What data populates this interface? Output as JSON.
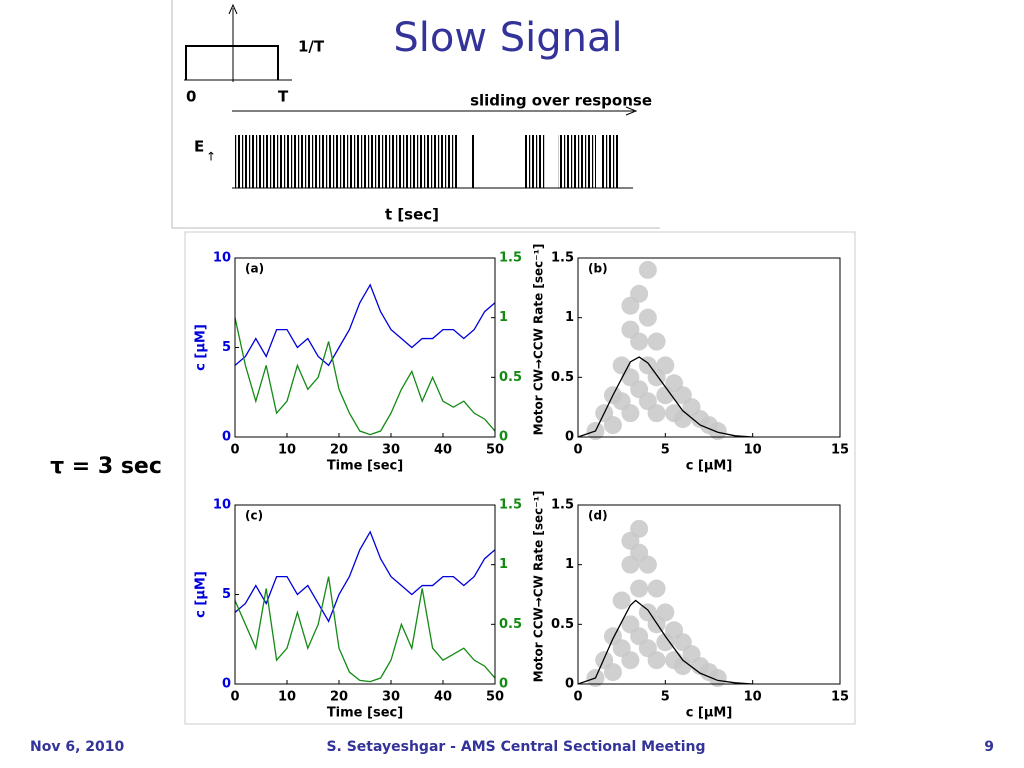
{
  "title": "Slow Signal",
  "diagram": {
    "pulse_height": "1/T",
    "pulse_start": "0",
    "pulse_end": "T",
    "arrow_label": "sliding over response",
    "signal_label": "E",
    "signal_arrow": "↑",
    "axis_label": "t [sec]"
  },
  "side_label": "τ = 3 sec",
  "footer": {
    "date": "Nov 6, 2010",
    "center": "S. Setayeshgar - AMS Central Sectional Meeting",
    "page": "9"
  },
  "chart_data": [
    {
      "type": "line",
      "annotation": "(a)",
      "xlabel": "Time [sec]",
      "ylabel": "c [μM]",
      "y2label": "Motor CW→CCW Rate [sec⁻¹]",
      "x": [
        0,
        2,
        4,
        6,
        8,
        10,
        12,
        14,
        16,
        18,
        20,
        22,
        24,
        26,
        28,
        30,
        32,
        34,
        36,
        38,
        40,
        42,
        44,
        46,
        48,
        50
      ],
      "xlim": [
        0,
        50
      ],
      "xticks": [
        0,
        10,
        20,
        30,
        40,
        50
      ],
      "ylim": [
        0,
        10
      ],
      "yticks": [
        0,
        5,
        10
      ],
      "y2lim": [
        0,
        1.5
      ],
      "y2ticks": [
        0,
        0.5,
        1,
        1.5
      ],
      "series": [
        {
          "color": "#0000dd",
          "values": [
            4,
            4.5,
            5.5,
            4.5,
            6,
            6,
            5,
            5.5,
            4.5,
            4,
            5,
            6,
            7.5,
            8.5,
            7,
            6,
            5.5,
            5,
            5.5,
            5.5,
            6,
            6,
            5.5,
            6,
            7,
            7.5
          ]
        },
        {
          "color": "#138a13",
          "axis": "y2",
          "values": [
            1.0,
            0.6,
            0.3,
            0.6,
            0.2,
            0.3,
            0.6,
            0.4,
            0.5,
            0.8,
            0.4,
            0.2,
            0.05,
            0.02,
            0.05,
            0.2,
            0.4,
            0.55,
            0.3,
            0.5,
            0.3,
            0.25,
            0.3,
            0.2,
            0.15,
            0.05
          ]
        }
      ]
    },
    {
      "type": "scatter",
      "annotation": "(b)",
      "xlabel": "c [μM]",
      "color": "#c8c8c8",
      "xlim": [
        0,
        15
      ],
      "xticks": [
        0,
        5,
        10,
        15
      ],
      "ylim": [
        0,
        1.5
      ],
      "yticks": [
        0,
        0.5,
        1,
        1.5
      ],
      "x": [
        1,
        1.5,
        2,
        2,
        2.5,
        2.5,
        3,
        3,
        3,
        3.5,
        3.5,
        3.5,
        4,
        4,
        4,
        4.5,
        4.5,
        4.5,
        5,
        5,
        5.5,
        5.5,
        6,
        6,
        6.5,
        7,
        7.5,
        8,
        3,
        4
      ],
      "values": [
        0.05,
        0.2,
        0.35,
        0.1,
        0.6,
        0.3,
        0.9,
        0.5,
        0.2,
        1.2,
        0.8,
        0.4,
        1.0,
        0.6,
        0.3,
        0.8,
        0.5,
        0.2,
        0.6,
        0.35,
        0.45,
        0.2,
        0.35,
        0.15,
        0.25,
        0.15,
        0.1,
        0.05,
        1.1,
        1.4
      ],
      "line": {
        "color": "#000000",
        "x": [
          0,
          1,
          2,
          3,
          3.5,
          4,
          5,
          6,
          7,
          8,
          9,
          10
        ],
        "values": [
          0,
          0.05,
          0.35,
          0.63,
          0.67,
          0.62,
          0.42,
          0.22,
          0.1,
          0.04,
          0.01,
          0
        ]
      }
    },
    {
      "type": "line",
      "annotation": "(c)",
      "xlabel": "Time [sec]",
      "ylabel": "c [μM]",
      "y2label": "Motor CCW→CW Rate [sec⁻¹]",
      "x": [
        0,
        2,
        4,
        6,
        8,
        10,
        12,
        14,
        16,
        18,
        20,
        22,
        24,
        26,
        28,
        30,
        32,
        34,
        36,
        38,
        40,
        42,
        44,
        46,
        48,
        50
      ],
      "xlim": [
        0,
        50
      ],
      "xticks": [
        0,
        10,
        20,
        30,
        40,
        50
      ],
      "ylim": [
        0,
        10
      ],
      "yticks": [
        0,
        5,
        10
      ],
      "y2lim": [
        0,
        1.5
      ],
      "y2ticks": [
        0,
        0.5,
        1,
        1.5
      ],
      "series": [
        {
          "color": "#0000dd",
          "values": [
            4,
            4.5,
            5.5,
            4.5,
            6,
            6,
            5,
            5.5,
            4.5,
            3.5,
            5,
            6,
            7.5,
            8.5,
            7,
            6,
            5.5,
            5,
            5.5,
            5.5,
            6,
            6,
            5.5,
            6,
            7,
            7.5
          ]
        },
        {
          "color": "#138a13",
          "axis": "y2",
          "values": [
            0.7,
            0.5,
            0.3,
            0.8,
            0.2,
            0.3,
            0.6,
            0.3,
            0.5,
            0.9,
            0.3,
            0.1,
            0.03,
            0.02,
            0.05,
            0.2,
            0.5,
            0.3,
            0.8,
            0.3,
            0.2,
            0.25,
            0.3,
            0.2,
            0.15,
            0.05
          ]
        }
      ]
    },
    {
      "type": "scatter",
      "annotation": "(d)",
      "xlabel": "c [μM]",
      "color": "#c8c8c8",
      "xlim": [
        0,
        15
      ],
      "xticks": [
        0,
        5,
        10,
        15
      ],
      "ylim": [
        0,
        1.5
      ],
      "yticks": [
        0,
        0.5,
        1,
        1.5
      ],
      "x": [
        1,
        1.5,
        2,
        2,
        2.5,
        2.5,
        3,
        3,
        3,
        3.5,
        3.5,
        3.5,
        4,
        4,
        4,
        4.5,
        4.5,
        4.5,
        5,
        5,
        5.5,
        5.5,
        6,
        6,
        6.5,
        7,
        7.5,
        8,
        3,
        3.5
      ],
      "values": [
        0.05,
        0.2,
        0.4,
        0.1,
        0.7,
        0.3,
        1.0,
        0.5,
        0.2,
        1.1,
        0.8,
        0.4,
        1.0,
        0.6,
        0.3,
        0.8,
        0.5,
        0.2,
        0.6,
        0.35,
        0.45,
        0.2,
        0.35,
        0.15,
        0.25,
        0.15,
        0.1,
        0.05,
        1.2,
        1.3
      ],
      "line": {
        "color": "#000000",
        "x": [
          0,
          1,
          2,
          3,
          3.3,
          4,
          5,
          6,
          7,
          8,
          9,
          10
        ],
        "values": [
          0,
          0.05,
          0.38,
          0.66,
          0.7,
          0.62,
          0.4,
          0.2,
          0.09,
          0.03,
          0.01,
          0
        ]
      }
    }
  ]
}
